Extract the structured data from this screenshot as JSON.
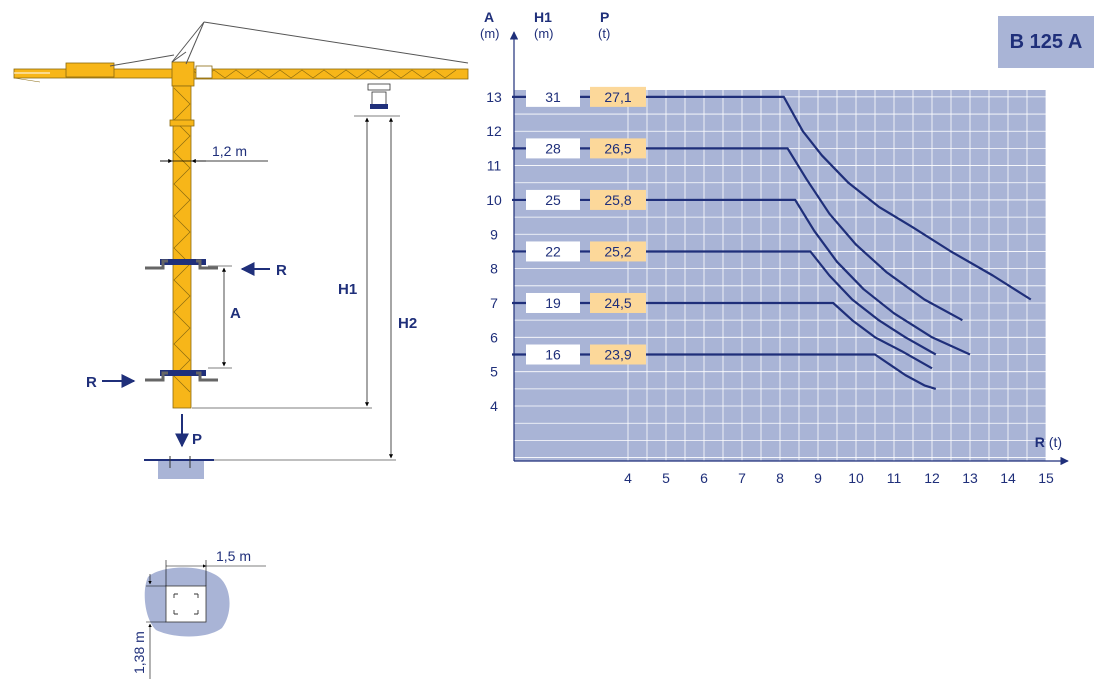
{
  "model": "B 125 A",
  "crane": {
    "mast_width": "1,2 m",
    "label_r": "R",
    "label_a": "A",
    "label_h1": "H1",
    "label_h2": "H2",
    "label_p": "P"
  },
  "foundation": {
    "width": "1,5 m",
    "height": "1,38 m"
  },
  "chart_data": {
    "type": "line",
    "columns": {
      "a": {
        "name": "A",
        "unit": "(m)"
      },
      "h1": {
        "name": "H1",
        "unit": "(m)"
      },
      "p": {
        "name": "P",
        "unit": "(t)"
      }
    },
    "x_axis": {
      "name": "R",
      "unit": "(t)",
      "ticks": [
        4,
        5,
        6,
        7,
        8,
        9,
        10,
        11,
        12,
        13,
        14,
        15
      ],
      "range": [
        1,
        15
      ]
    },
    "y_axis": {
      "ticks": [
        4,
        5,
        6,
        7,
        8,
        9,
        10,
        11,
        12,
        13
      ],
      "range": [
        2.4,
        13.2
      ]
    },
    "grid": true,
    "colors": {
      "grid_bg": "#a9b4d6",
      "line": "#1f2f7a",
      "h1_box": "#ffffff",
      "p_box": "#fcd89a",
      "crane": "#f7b619"
    },
    "series": [
      {
        "a": 13,
        "h1": "31",
        "p": "27,1",
        "points": [
          [
            8.1,
            13
          ],
          [
            8.6,
            12
          ],
          [
            9.1,
            11.3
          ],
          [
            9.8,
            10.5
          ],
          [
            10.6,
            9.8
          ],
          [
            11.5,
            9.2
          ],
          [
            12.5,
            8.5
          ],
          [
            13.6,
            7.8
          ],
          [
            14.6,
            7.1
          ]
        ]
      },
      {
        "a": 11.5,
        "h1": "28",
        "p": "26,5",
        "points": [
          [
            8.2,
            11.5
          ],
          [
            8.7,
            10.6
          ],
          [
            9.3,
            9.6
          ],
          [
            10,
            8.7
          ],
          [
            10.8,
            7.9
          ],
          [
            11.8,
            7.1
          ],
          [
            12.8,
            6.5
          ]
        ]
      },
      {
        "a": 10,
        "h1": "25",
        "p": "25,8",
        "points": [
          [
            8.4,
            10
          ],
          [
            8.9,
            9.1
          ],
          [
            9.5,
            8.2
          ],
          [
            10.2,
            7.4
          ],
          [
            11,
            6.7
          ],
          [
            12,
            6.0
          ],
          [
            13,
            5.5
          ]
        ]
      },
      {
        "a": 8.5,
        "h1": "22",
        "p": "25,2",
        "points": [
          [
            8.8,
            8.5
          ],
          [
            9.3,
            7.8
          ],
          [
            9.9,
            7.1
          ],
          [
            10.6,
            6.5
          ],
          [
            11.3,
            6.0
          ],
          [
            12.1,
            5.5
          ]
        ]
      },
      {
        "a": 7,
        "h1": "19",
        "p": "24,5",
        "points": [
          [
            9.4,
            7
          ],
          [
            9.9,
            6.5
          ],
          [
            10.5,
            6.0
          ],
          [
            11.2,
            5.6
          ],
          [
            12,
            5.1
          ]
        ]
      },
      {
        "a": 5.5,
        "h1": "16",
        "p": "23,9",
        "points": [
          [
            10.5,
            5.5
          ],
          [
            10.9,
            5.2
          ],
          [
            11.3,
            4.9
          ],
          [
            11.8,
            4.6
          ],
          [
            12.1,
            4.5
          ]
        ]
      }
    ]
  }
}
